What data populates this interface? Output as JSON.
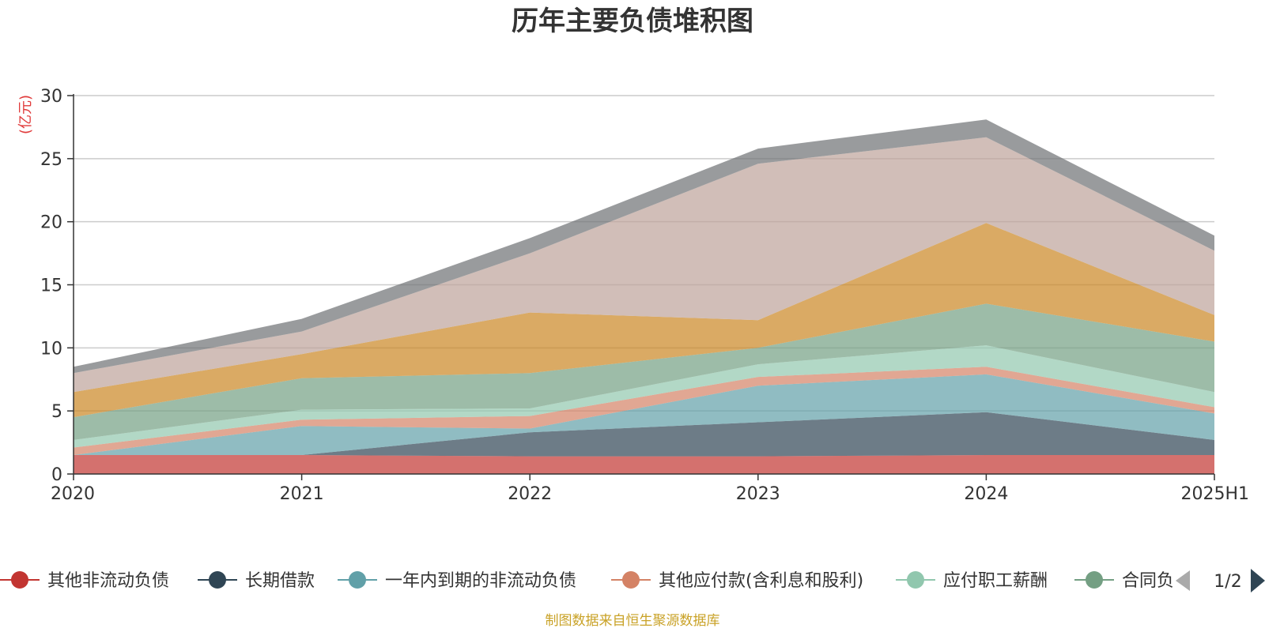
{
  "chart_data": {
    "type": "area",
    "stacked": true,
    "title": "历年主要负债堆积图",
    "unit_label": "(亿元)",
    "source_note": "制图数据来自恒生聚源数据库",
    "categories": [
      "2020",
      "2021",
      "2022",
      "2023",
      "2024",
      "2025H1"
    ],
    "ylim": [
      0,
      30
    ],
    "yticks": [
      0,
      5,
      10,
      15,
      20,
      25,
      30
    ],
    "grid": true,
    "legend": {
      "placement": "bottom",
      "page_indicator": "1/2",
      "visible_entries": [
        "其他非流动负债",
        "长期借款",
        "一年内到期的非流动负债",
        "其他应付款(含利息和股利)",
        "应付职工薪酬",
        "合同负"
      ]
    },
    "series": [
      {
        "name": "其他非流动负债",
        "color": "#c23531",
        "values": [
          1.5,
          1.5,
          1.4,
          1.4,
          1.5,
          1.5
        ]
      },
      {
        "name": "长期借款",
        "color": "#2f4554",
        "values": [
          0.0,
          0.0,
          1.9,
          2.7,
          3.4,
          1.2
        ]
      },
      {
        "name": "一年内到期的非流动负债",
        "color": "#61a0a8",
        "values": [
          0.0,
          2.3,
          0.3,
          2.9,
          3.0,
          2.1
        ]
      },
      {
        "name": "其他应付款(含利息和股利)",
        "color": "#d48265",
        "values": [
          0.6,
          0.5,
          1.0,
          0.7,
          0.6,
          0.5
        ]
      },
      {
        "name": "应付职工薪酬",
        "color": "#91c7ae",
        "values": [
          0.6,
          0.8,
          0.6,
          1.0,
          1.7,
          1.2
        ]
      },
      {
        "name": "合同负债",
        "color": "#749f83",
        "values": [
          1.8,
          2.5,
          2.8,
          1.3,
          3.3,
          4.0
        ]
      },
      {
        "color": "#ca8622",
        "values": [
          2.0,
          1.9,
          4.8,
          2.2,
          6.4,
          2.1
        ]
      },
      {
        "color": "#bda29a",
        "values": [
          1.5,
          1.8,
          4.7,
          12.4,
          6.8,
          5.1
        ]
      },
      {
        "color": "#6e7074",
        "values": [
          0.5,
          1.0,
          1.2,
          1.2,
          1.4,
          1.2
        ]
      }
    ]
  }
}
